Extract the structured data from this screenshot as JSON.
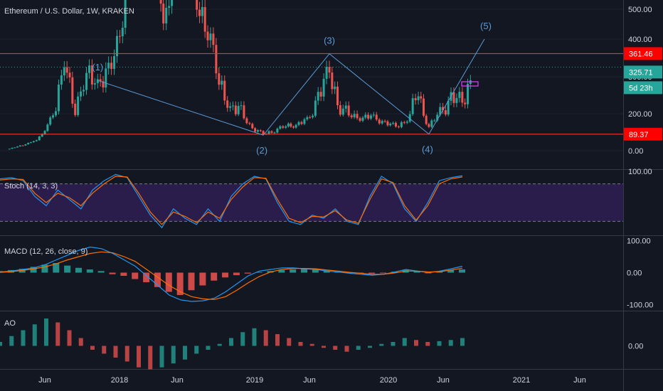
{
  "header": {
    "symbol_line": "Ethereum / U.S. Dollar, 1W, KRAKEN"
  },
  "panes": {
    "stoch": {
      "label": "Stoch (14, 3, 3)"
    },
    "macd": {
      "label": "MACD (12, 26, close, 9)"
    },
    "ao": {
      "label": "AO"
    }
  },
  "colors": {
    "background": "#131722",
    "up_candle": "#26a69a",
    "down_candle": "#ef5350",
    "support_resistance": "#ff3b3b",
    "wave_line": "#5b9bd5",
    "stoch_fill": "#2b1d4b",
    "stoch_k": "#2196f3",
    "stoch_d": "#ff6d00",
    "text": "#d1d4dc",
    "price_badge_current": "#26a69a",
    "price_badge_level": "#ff0000"
  },
  "chart_data": [
    {
      "type": "candlestick",
      "title": "Ethereum / U.S. Dollar, 1W, KRAKEN",
      "x_ticks": [
        "Jun",
        "2018",
        "Jun",
        "2019",
        "Jun",
        "2020",
        "Jun",
        "2021",
        "Jun"
      ],
      "y_ticks": [
        "500.00",
        "400.00",
        "300.00",
        "200.00",
        "0.00"
      ],
      "horizontal_levels": [
        361.46,
        89.37
      ],
      "price_labels": {
        "resistance": "361.46",
        "current": "325.71",
        "countdown": "5d 23h",
        "support": "89.37"
      },
      "wave_labels": [
        "(1)",
        "(2)",
        "(3)",
        "(4)",
        "(5)"
      ],
      "wave_points": [
        {
          "label": "(1)",
          "date": "2017-09",
          "price": 290
        },
        {
          "label": "(2)",
          "date": "2018-12",
          "price": 84
        },
        {
          "label": "(3)",
          "date": "2019-06",
          "price": 361
        },
        {
          "label": "(4)",
          "date": "2020-03",
          "price": 90
        },
        {
          "label": "(5)",
          "date": "2020-08",
          "price": 400
        }
      ],
      "series_approx_weekly_close": [
        {
          "date": "2017-01",
          "price": 10
        },
        {
          "date": "2017-03",
          "price": 45
        },
        {
          "date": "2017-04",
          "price": 80
        },
        {
          "date": "2017-05",
          "price": 200
        },
        {
          "date": "2017-06",
          "price": 330
        },
        {
          "date": "2017-07",
          "price": 220
        },
        {
          "date": "2017-08",
          "price": 300
        },
        {
          "date": "2017-09",
          "price": 290
        },
        {
          "date": "2017-10",
          "price": 300
        },
        {
          "date": "2017-11",
          "price": 420
        },
        {
          "date": "2017-12",
          "price": 700
        },
        {
          "date": "2018-01",
          "price": 1100
        },
        {
          "date": "2018-02",
          "price": 850
        },
        {
          "date": "2018-03",
          "price": 450
        },
        {
          "date": "2018-04",
          "price": 650
        },
        {
          "date": "2018-05",
          "price": 700
        },
        {
          "date": "2018-06",
          "price": 500
        },
        {
          "date": "2018-07",
          "price": 450
        },
        {
          "date": "2018-08",
          "price": 280
        },
        {
          "date": "2018-09",
          "price": 220
        },
        {
          "date": "2018-10",
          "price": 200
        },
        {
          "date": "2018-11",
          "price": 120
        },
        {
          "date": "2018-12",
          "price": 90
        },
        {
          "date": "2019-01",
          "price": 110
        },
        {
          "date": "2019-02",
          "price": 135
        },
        {
          "date": "2019-03",
          "price": 140
        },
        {
          "date": "2019-04",
          "price": 165
        },
        {
          "date": "2019-05",
          "price": 250
        },
        {
          "date": "2019-06",
          "price": 310
        },
        {
          "date": "2019-07",
          "price": 215
        },
        {
          "date": "2019-08",
          "price": 190
        },
        {
          "date": "2019-09",
          "price": 180
        },
        {
          "date": "2019-10",
          "price": 180
        },
        {
          "date": "2019-11",
          "price": 150
        },
        {
          "date": "2019-12",
          "price": 130
        },
        {
          "date": "2020-01",
          "price": 170
        },
        {
          "date": "2020-02",
          "price": 265
        },
        {
          "date": "2020-03",
          "price": 130
        },
        {
          "date": "2020-04",
          "price": 205
        },
        {
          "date": "2020-05",
          "price": 240
        },
        {
          "date": "2020-06",
          "price": 228
        },
        {
          "date": "2020-07",
          "price": 325.71
        }
      ]
    },
    {
      "type": "line",
      "title": "Stoch (14, 3, 3)",
      "y_ticks": [
        "100.00"
      ],
      "ylim": [
        0,
        100
      ],
      "band": [
        20,
        80
      ],
      "series": [
        {
          "name": "%K",
          "values": [
            88,
            90,
            85,
            60,
            45,
            70,
            55,
            40,
            70,
            85,
            95,
            90,
            60,
            30,
            10,
            40,
            25,
            15,
            40,
            20,
            60,
            80,
            92,
            88,
            50,
            20,
            15,
            30,
            25,
            40,
            20,
            15,
            60,
            92,
            80,
            40,
            20,
            50,
            85,
            90,
            93
          ]
        },
        {
          "name": "%D",
          "values": [
            86,
            88,
            87,
            65,
            50,
            65,
            58,
            45,
            65,
            80,
            92,
            91,
            65,
            35,
            15,
            35,
            28,
            18,
            35,
            25,
            55,
            75,
            90,
            89,
            55,
            25,
            18,
            28,
            27,
            37,
            22,
            17,
            55,
            88,
            82,
            45,
            22,
            45,
            80,
            88,
            91
          ]
        }
      ]
    },
    {
      "type": "bar",
      "title": "MACD (12, 26, close, 9)",
      "y_ticks": [
        "100.00",
        "0.00",
        "-100.00"
      ],
      "ylim": [
        -110,
        110
      ],
      "histogram": [
        5,
        8,
        12,
        18,
        25,
        30,
        22,
        15,
        10,
        5,
        -5,
        -10,
        -20,
        -30,
        -45,
        -60,
        -70,
        -55,
        -40,
        -25,
        -15,
        -8,
        -3,
        2,
        5,
        8,
        10,
        12,
        10,
        6,
        3,
        1,
        -2,
        -3,
        -2,
        3,
        8,
        5,
        -2,
        4,
        8,
        10
      ],
      "series": [
        {
          "name": "MACD",
          "values": [
            2,
            5,
            10,
            15,
            25,
            40,
            55,
            70,
            80,
            75,
            60,
            40,
            20,
            -10,
            -40,
            -70,
            -85,
            -90,
            -88,
            -80,
            -60,
            -35,
            -10,
            5,
            10,
            15,
            15,
            12,
            10,
            5,
            2,
            -2,
            -5,
            -8,
            -5,
            2,
            10,
            5,
            0,
            5,
            12,
            20
          ]
        },
        {
          "name": "Signal",
          "values": [
            1,
            3,
            7,
            12,
            18,
            28,
            40,
            50,
            60,
            65,
            62,
            50,
            35,
            10,
            -15,
            -40,
            -60,
            -75,
            -82,
            -84,
            -75,
            -55,
            -32,
            -12,
            2,
            10,
            13,
            13,
            12,
            8,
            5,
            1,
            -2,
            -5,
            -5,
            -1,
            5,
            5,
            2,
            3,
            8,
            14
          ]
        }
      ]
    },
    {
      "type": "bar",
      "title": "AO",
      "y_ticks": [
        "0.00"
      ],
      "histogram": [
        10,
        25,
        40,
        55,
        70,
        60,
        40,
        20,
        -10,
        -20,
        -30,
        -40,
        -55,
        -60,
        -55,
        -45,
        -35,
        -20,
        -10,
        5,
        20,
        35,
        45,
        40,
        30,
        20,
        10,
        5,
        -5,
        -10,
        -15,
        -10,
        -5,
        5,
        10,
        20,
        15,
        10,
        12,
        15,
        20
      ]
    }
  ],
  "x_axis_labels": [
    "Jun",
    "2018",
    "Jun",
    "2019",
    "Jun",
    "2020",
    "Jun",
    "2021",
    "Jun"
  ]
}
